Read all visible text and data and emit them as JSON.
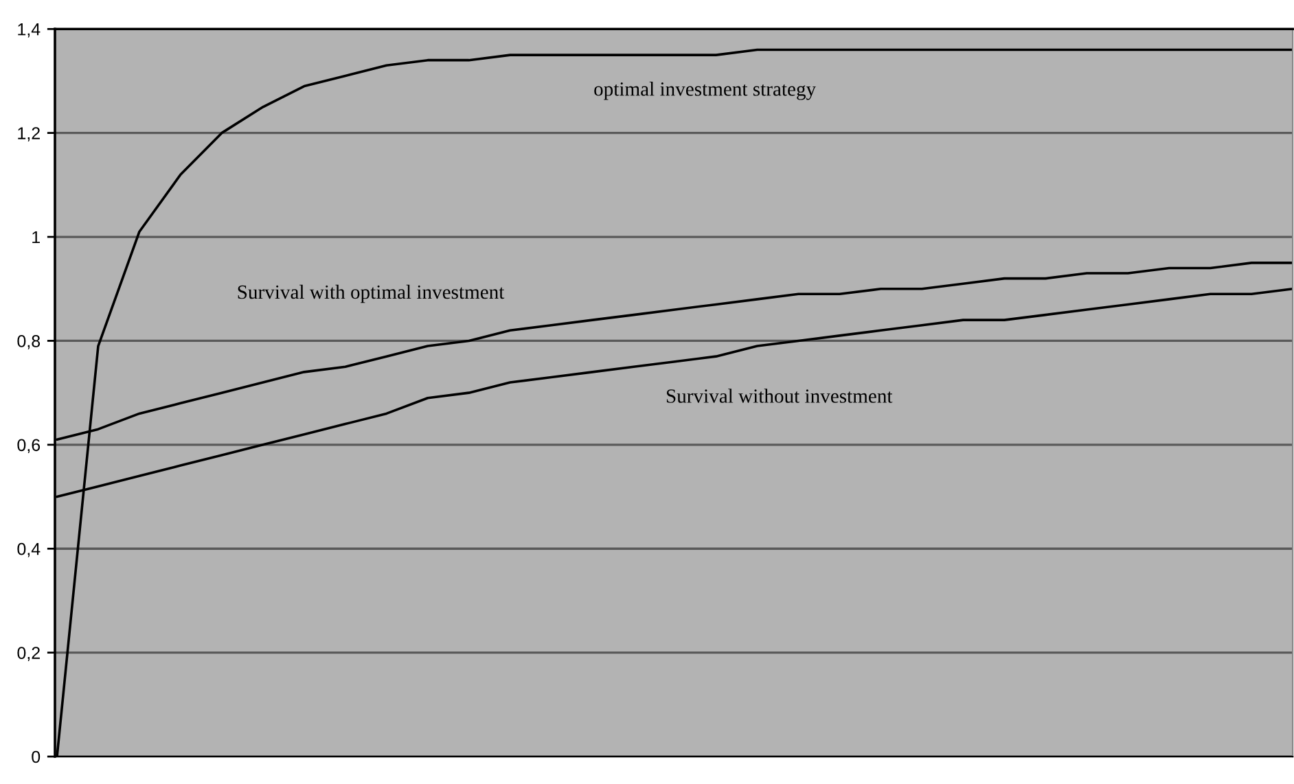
{
  "chart_data": {
    "type": "line",
    "categories": [
      null,
      null,
      null,
      null,
      null,
      null,
      null,
      null,
      null,
      null,
      null,
      null,
      null,
      null,
      null,
      null,
      null,
      null,
      null,
      null,
      null,
      null,
      null,
      null,
      null,
      null,
      null,
      null,
      null,
      null,
      null
    ],
    "series": [
      {
        "name": "optimal investment strategy",
        "color": "#000000",
        "values": [
          0,
          0.79,
          1.01,
          1.12,
          1.2,
          1.25,
          1.29,
          1.31,
          1.33,
          1.34,
          1.34,
          1.35,
          1.35,
          1.35,
          1.35,
          1.35,
          1.35,
          1.36,
          1.36,
          1.36,
          1.36,
          1.36,
          1.36,
          1.36,
          1.36,
          1.36,
          1.36,
          1.36,
          1.36,
          1.36,
          1.36
        ]
      },
      {
        "name": "Survival with optimal investment",
        "color": "#000000",
        "values": [
          0.61,
          0.63,
          0.66,
          0.68,
          0.7,
          0.72,
          0.74,
          0.75,
          0.77,
          0.79,
          0.8,
          0.82,
          0.83,
          0.84,
          0.85,
          0.86,
          0.87,
          0.88,
          0.89,
          0.89,
          0.9,
          0.9,
          0.91,
          0.92,
          0.92,
          0.93,
          0.93,
          0.94,
          0.94,
          0.95,
          0.95
        ]
      },
      {
        "name": "Survival without investment",
        "color": "#000000",
        "values": [
          0.5,
          0.52,
          0.54,
          0.56,
          0.58,
          0.6,
          0.62,
          0.64,
          0.66,
          0.69,
          0.7,
          0.72,
          0.73,
          0.74,
          0.75,
          0.76,
          0.77,
          0.79,
          0.8,
          0.81,
          0.82,
          0.83,
          0.84,
          0.84,
          0.85,
          0.86,
          0.87,
          0.88,
          0.89,
          0.89,
          0.9
        ]
      }
    ],
    "ylim": [
      0,
      1.4
    ],
    "yticks": [
      0,
      {
        "value": 0.2,
        "label": "0,2"
      },
      {
        "value": 0.4,
        "label": "0,4"
      },
      {
        "value": 0.6,
        "label": "0,6"
      },
      {
        "value": 0.8,
        "label": "0,8"
      },
      1,
      {
        "value": 1.2,
        "label": "1,2"
      },
      {
        "value": 1.4,
        "label": "1,4"
      }
    ],
    "grid": "y"
  }
}
